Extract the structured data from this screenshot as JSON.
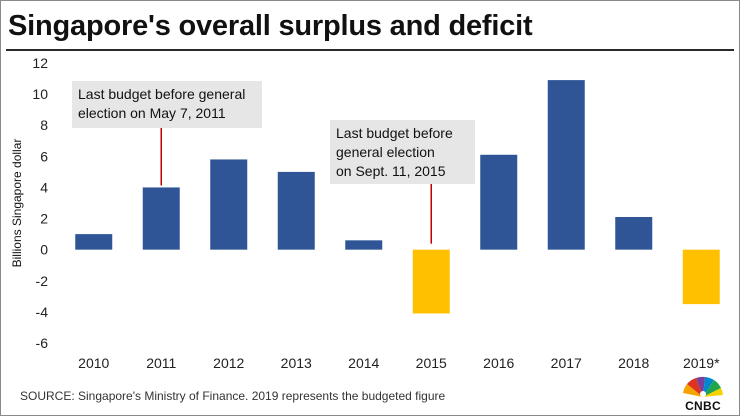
{
  "title": "Singapore's overall surplus and deficit",
  "source": "SOURCE: Singapore's Ministry of Finance. 2019 represents the budgeted figure",
  "logo": {
    "name": "CNBC",
    "icon": "cnbc-peacock-icon"
  },
  "colors": {
    "surplus": "#2f5597",
    "deficit": "#ffc000",
    "callout_bg": "#e6e6e6",
    "leader": "#c00000"
  },
  "annotations": [
    {
      "category": "2011",
      "lines": [
        "Last budget before general",
        "election on May 7, 2011"
      ]
    },
    {
      "category": "2015",
      "lines": [
        "Last budget before",
        "general election",
        "on Sept. 11, 2015"
      ]
    }
  ],
  "chart_data": {
    "type": "bar",
    "title": "Singapore's overall surplus and deficit",
    "xlabel": "",
    "ylabel": "Billions Singapore dollar",
    "categories": [
      "2010",
      "2011",
      "2012",
      "2013",
      "2014",
      "2015",
      "2016",
      "2017",
      "2018",
      "2019*"
    ],
    "values": [
      1.0,
      4.0,
      5.8,
      5.0,
      0.6,
      -4.1,
      6.1,
      10.9,
      2.1,
      -3.5
    ],
    "ylim": [
      -6,
      12
    ],
    "yticks": [
      12,
      10,
      8,
      6,
      4,
      2,
      0,
      -2,
      -4,
      -6
    ],
    "grid": false,
    "legend": "none"
  }
}
